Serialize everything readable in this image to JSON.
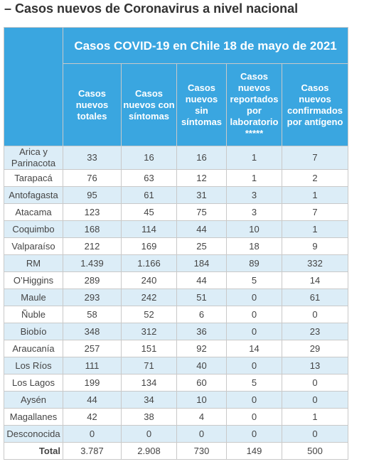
{
  "heading": "– Casos nuevos de Coronavirus a nivel nacional",
  "table": {
    "title": "Casos COVID-19 en Chile 18 de mayo de 2021",
    "columns": [
      "Casos nuevos totales",
      "Casos nuevos con síntomas",
      "Casos nuevos sin síntomas",
      "Casos nuevos reportados por laboratorio *****",
      "Casos nuevos confirmados por antígeno"
    ],
    "rows": [
      [
        "Arica y Parinacota",
        "33",
        "16",
        "16",
        "1",
        "7"
      ],
      [
        "Tarapacá",
        "76",
        "63",
        "12",
        "1",
        "2"
      ],
      [
        "Antofagasta",
        "95",
        "61",
        "31",
        "3",
        "1"
      ],
      [
        "Atacama",
        "123",
        "45",
        "75",
        "3",
        "7"
      ],
      [
        "Coquimbo",
        "168",
        "114",
        "44",
        "10",
        "1"
      ],
      [
        "Valparaíso",
        "212",
        "169",
        "25",
        "18",
        "9"
      ],
      [
        "RM",
        "1.439",
        "1.166",
        "184",
        "89",
        "332"
      ],
      [
        "O’Higgins",
        "289",
        "240",
        "44",
        "5",
        "14"
      ],
      [
        "Maule",
        "293",
        "242",
        "51",
        "0",
        "61"
      ],
      [
        "Ñuble",
        "58",
        "52",
        "6",
        "0",
        "0"
      ],
      [
        "Biobío",
        "348",
        "312",
        "36",
        "0",
        "23"
      ],
      [
        "Araucanía",
        "257",
        "151",
        "92",
        "14",
        "29"
      ],
      [
        "Los Ríos",
        "111",
        "71",
        "40",
        "0",
        "13"
      ],
      [
        "Los Lagos",
        "199",
        "134",
        "60",
        "5",
        "0"
      ],
      [
        "Aysén",
        "44",
        "34",
        "10",
        "0",
        "0"
      ],
      [
        "Magallanes",
        "42",
        "38",
        "4",
        "0",
        "1"
      ],
      [
        "Desconocida",
        "0",
        "0",
        "0",
        "0",
        "0"
      ]
    ],
    "total": [
      "Total",
      "3.787",
      "2.908",
      "730",
      "149",
      "500"
    ]
  }
}
